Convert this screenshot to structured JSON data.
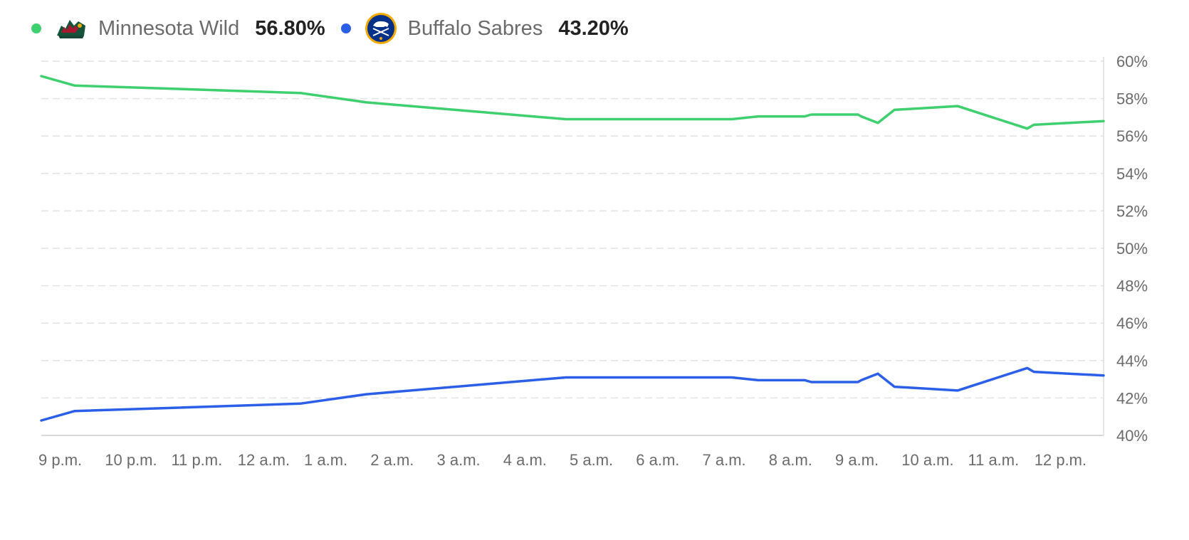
{
  "legend": [
    {
      "team": "Minnesota Wild",
      "pct": "56.80%",
      "color": "#3ecf6e",
      "logo": "minnesota-wild-logo"
    },
    {
      "team": "Buffalo Sabres",
      "pct": "43.20%",
      "color": "#2b5fe8",
      "logo": "buffalo-sabres-logo"
    }
  ],
  "chart_data": {
    "type": "line",
    "x_labels": [
      "9 p.m.",
      "10 p.m.",
      "11 p.m.",
      "12 a.m.",
      "1 a.m.",
      "2 a.m.",
      "3 a.m.",
      "4 a.m.",
      "5 a.m.",
      "6 a.m.",
      "7 a.m.",
      "8 a.m.",
      "9 a.m.",
      "10 a.m.",
      "11 a.m.",
      "12 p.m."
    ],
    "y_ticks": [
      "60%",
      "58%",
      "56%",
      "54%",
      "52%",
      "50%",
      "48%",
      "46%",
      "44%",
      "42%",
      "40%"
    ],
    "ylim": [
      40,
      60
    ],
    "xlim": [
      0,
      16
    ],
    "grid": true,
    "series": [
      {
        "name": "Minnesota Wild",
        "color": "#3ecf6e",
        "x": [
          0,
          0.5,
          3.9,
          4.9,
          7.9,
          10.4,
          10.8,
          11.5,
          11.6,
          12.3,
          12.35,
          12.6,
          12.85,
          13.8,
          14.85,
          14.95,
          16
        ],
        "y": [
          59.2,
          58.7,
          58.3,
          57.8,
          56.9,
          56.9,
          57.05,
          57.05,
          57.15,
          57.15,
          57.05,
          56.7,
          57.4,
          57.6,
          56.4,
          56.6,
          56.8
        ]
      },
      {
        "name": "Buffalo Sabres",
        "color": "#2b5fe8",
        "x": [
          0,
          0.5,
          3.9,
          4.9,
          7.9,
          10.4,
          10.8,
          11.5,
          11.6,
          12.3,
          12.35,
          12.6,
          12.85,
          13.8,
          14.85,
          14.95,
          16
        ],
        "y": [
          40.8,
          41.3,
          41.7,
          42.2,
          43.1,
          43.1,
          42.95,
          42.95,
          42.85,
          42.85,
          42.95,
          43.3,
          42.6,
          42.4,
          43.6,
          43.4,
          43.2
        ]
      }
    ]
  }
}
